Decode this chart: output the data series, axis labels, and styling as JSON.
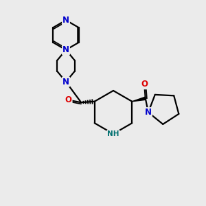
{
  "bg_color": "#ebebeb",
  "bond_color": "#000000",
  "N_color": "#0000cc",
  "O_color": "#dd0000",
  "NH_color": "#007070",
  "line_width": 1.6,
  "font_size_atom": 8.5,
  "fig_w": 3.0,
  "fig_h": 3.0,
  "dpi": 100,
  "xlim": [
    0,
    10
  ],
  "ylim": [
    0,
    10
  ]
}
